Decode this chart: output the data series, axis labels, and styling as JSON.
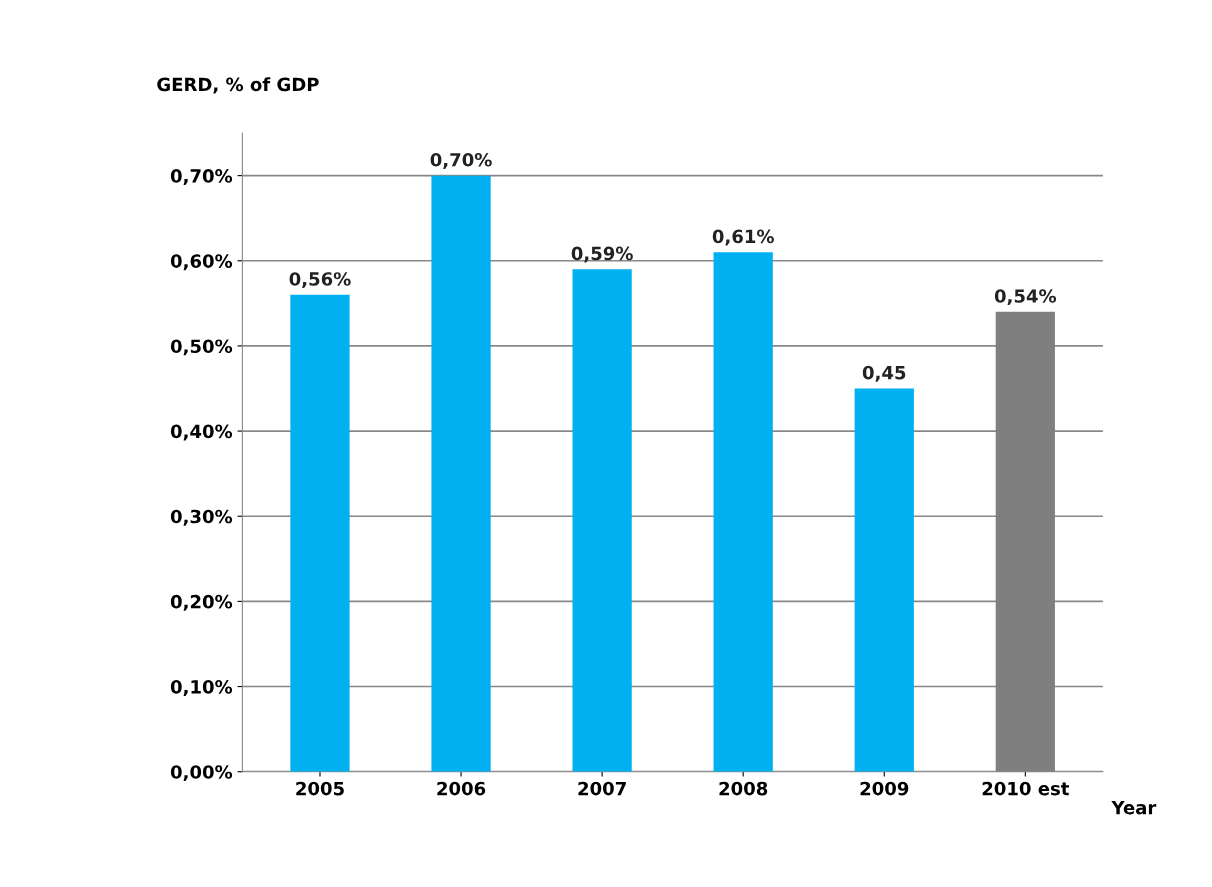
{
  "chart_data": {
    "type": "bar",
    "ylabel": "GERD, % of GDP",
    "xlabel": "Year",
    "categories": [
      "2005",
      "2006",
      "2007",
      "2008",
      "2009",
      "2010 est"
    ],
    "values": [
      0.56,
      0.7,
      0.59,
      0.61,
      0.45,
      0.54
    ],
    "colors": [
      "#00b0f0",
      "#00b0f0",
      "#00b0f0",
      "#00b0f0",
      "#00b0f0",
      "#7f7f7f"
    ],
    "value_labels": [
      "0,56%",
      "0,70%",
      "0,59%",
      "0,61%",
      "0,45",
      "0,54%"
    ],
    "ylim": [
      0,
      0.75
    ],
    "yticks": [
      {
        "value": 0,
        "label": "0,00%"
      },
      {
        "value": 0.1,
        "label": "0,10%"
      },
      {
        "value": 0.2,
        "label": "0,20%"
      },
      {
        "value": 0.3,
        "label": "0,30%"
      },
      {
        "value": 0.4,
        "label": "0,40%"
      },
      {
        "value": 0.5,
        "label": "0,50%"
      },
      {
        "value": 0.6,
        "label": "0,60%"
      },
      {
        "value": 0.7,
        "label": "0,70%"
      }
    ],
    "grid": "y",
    "legend": false
  }
}
